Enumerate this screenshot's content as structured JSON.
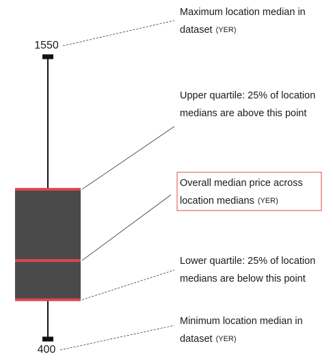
{
  "chart_data": {
    "type": "box",
    "min": 400,
    "q1": 560,
    "median": 720,
    "q3": 1010,
    "max": 1550,
    "box_color": "#4a4a4a",
    "quartile_color": "#e0474c",
    "annotations": [
      {
        "lines": [
          "Maximum location median in",
          "dataset"
        ],
        "unit": "(YER)"
      },
      {
        "lines": [
          "Upper quartile: 25% of location",
          "medians are above this point"
        ]
      },
      {
        "lines": [
          "Overall median price across",
          "location medians"
        ],
        "unit": "(YER)"
      },
      {
        "lines": [
          "Lower quartile: 25% of location",
          "medians are below this point"
        ]
      },
      {
        "lines": [
          "Minimum location median in",
          "dataset"
        ],
        "unit": "(YER)"
      }
    ]
  }
}
